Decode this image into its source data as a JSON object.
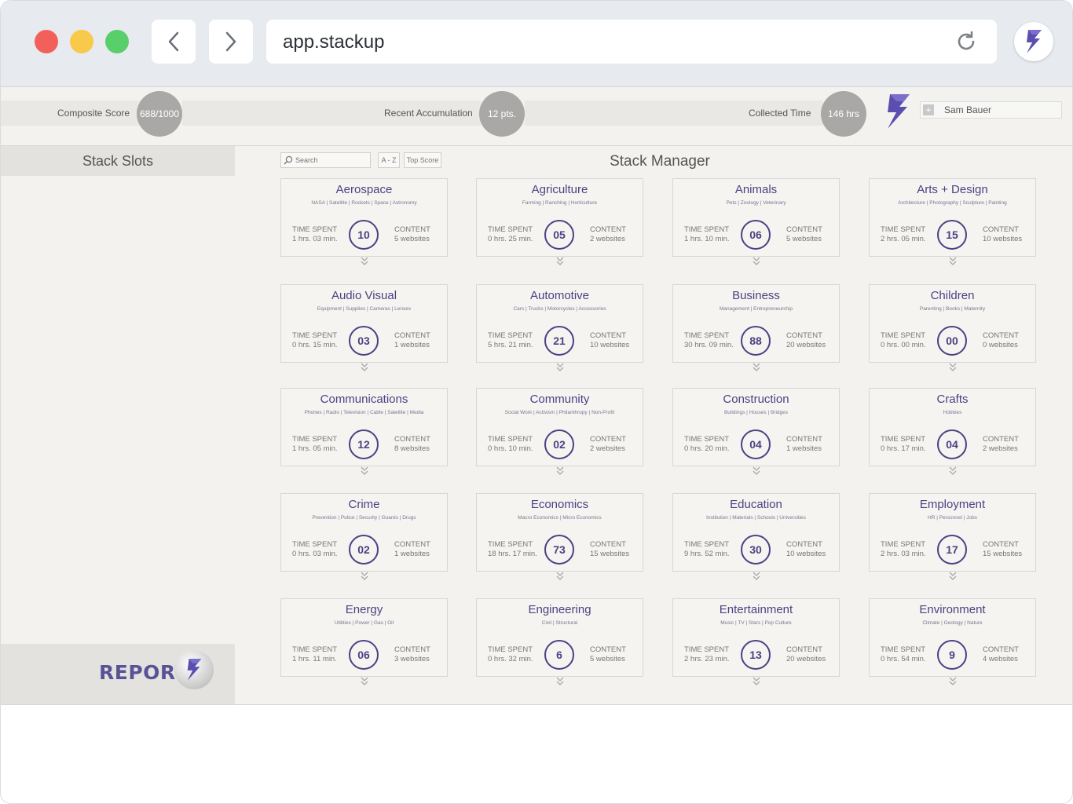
{
  "browser": {
    "url": "app.stackup",
    "back_icon": "chevron-left-icon",
    "forward_icon": "chevron-right-icon",
    "reload_icon": "reload-icon",
    "profile_icon": "stackup-logo-icon"
  },
  "header": {
    "composite_label": "Composite Score",
    "composite_value": "688/1000",
    "recent_label": "Recent Accumulation",
    "recent_value": "12 pts.",
    "collected_label": "Collected Time",
    "collected_value": "146 hrs",
    "user_name": "Sam Bauer"
  },
  "sidebar": {
    "title": "Stack Slots",
    "report_label": "REPORT"
  },
  "manager": {
    "title": "Stack Manager",
    "search_placeholder": "Search",
    "sort_az": "A - Z",
    "sort_top": "Top Score"
  },
  "labels": {
    "time_spent": "TIME SPENT",
    "content": "CONTENT"
  },
  "colors": {
    "accent": "#4a4283",
    "brand_purple": "#5a5296",
    "panel_bg": "#f3f2ef"
  },
  "cards": [
    {
      "title": "Aerospace",
      "sub": "NASA | Satellite | Rockets | Space | Astronomy",
      "time": "1 hrs.  03 min.",
      "score": "10",
      "content": "5 websites"
    },
    {
      "title": "Agriculture",
      "sub": "Farming | Ranching | Horticulture",
      "time": "0 hrs.  25 min.",
      "score": "05",
      "content": "2 websites"
    },
    {
      "title": "Animals",
      "sub": "Pets | Zoology | Veterinary",
      "time": "1 hrs.  10 min.",
      "score": "06",
      "content": "5 websites"
    },
    {
      "title": "Arts + Design",
      "sub": "Architecture | Photography | Sculpture | Painting",
      "time": "2 hrs.  05 min.",
      "score": "15",
      "content": "10 websites"
    },
    {
      "title": "Audio Visual",
      "sub": "Equipment | Supplies | Cameras | Lenses",
      "time": "0 hrs.  15 min.",
      "score": "03",
      "content": "1 websites"
    },
    {
      "title": "Automotive",
      "sub": "Cars | Trucks | Motorcycles | Accessories",
      "time": "5 hrs.  21 min.",
      "score": "21",
      "content": "10 websites"
    },
    {
      "title": "Business",
      "sub": "Management | Entrepreneurship",
      "time": "30 hrs.  09 min.",
      "score": "88",
      "content": "20 websites"
    },
    {
      "title": "Children",
      "sub": "Parenting | Books | Maternity",
      "time": "0 hrs.  00 min.",
      "score": "00",
      "content": "0 websites"
    },
    {
      "title": "Communications",
      "sub": "Phones | Radio | Television | Cable | Satellite | Media",
      "time": "1 hrs.  05 min.",
      "score": "12",
      "content": "8 websites"
    },
    {
      "title": "Community",
      "sub": "Social Work | Activism | Philanthropy | Non-Profit",
      "time": "0 hrs.  10 min.",
      "score": "02",
      "content": "2 websites"
    },
    {
      "title": "Construction",
      "sub": "Buildings | Houses | Bridges",
      "time": "0 hrs.  20 min.",
      "score": "04",
      "content": "1 websites"
    },
    {
      "title": "Crafts",
      "sub": "Hobbies",
      "time": "0 hrs.  17 min.",
      "score": "04",
      "content": "2 websites"
    },
    {
      "title": "Crime",
      "sub": "Prevention | Police | Security | Guards | Drugs",
      "time": "0 hrs.  03 min.",
      "score": "02",
      "content": "1 websites"
    },
    {
      "title": "Economics",
      "sub": "Macro Economics | Micro Economics",
      "time": "18 hrs.  17 min.",
      "score": "73",
      "content": "15 websites"
    },
    {
      "title": "Education",
      "sub": "Institution | Materials | Schools | Universities",
      "time": "9 hrs.  52 min.",
      "score": "30",
      "content": "10 websites"
    },
    {
      "title": "Employment",
      "sub": "HR | Personnel | Jobs",
      "time": "2 hrs.  03 min.",
      "score": "17",
      "content": "15 websites"
    },
    {
      "title": "Energy",
      "sub": "Utilities | Power | Gas | Oil",
      "time": "1 hrs.  11 min.",
      "score": "06",
      "content": "3 websites"
    },
    {
      "title": "Engineering",
      "sub": "Civil | Structural",
      "time": "0 hrs.  32 min.",
      "score": "6",
      "content": "5 websites"
    },
    {
      "title": "Entertainment",
      "sub": "Music | TV | Stars | Pop Culture",
      "time": "2 hrs.  23 min.",
      "score": "13",
      "content": "20 websites"
    },
    {
      "title": "Environment",
      "sub": "Climate | Geology | Nature",
      "time": "0 hrs.  54 min.",
      "score": "9",
      "content": "4 websites"
    }
  ]
}
